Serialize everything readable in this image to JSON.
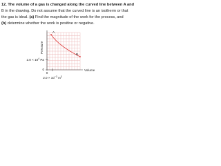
{
  "problem": {
    "lines": [
      [
        "12. The volume of a gas is changed along the curved line between A and"
      ],
      [
        "B in the drawing. Do not assume that the curved line is an isotherm or that"
      ],
      [
        "the gas is ideal. ",
        "(a)",
        " Find the magnitude of the work for the process, and"
      ],
      [
        "(b)",
        " determine whether the work is positive or negative."
      ]
    ]
  },
  "graph": {
    "y_axis_label": "Pressure",
    "x_axis_label": "Volume",
    "point_a": "A",
    "point_b": "B",
    "y_tick": {
      "base": "2.0 × 10",
      "exp": "4",
      "unit": " Pa"
    },
    "y_origin": "0",
    "x_origin": "0",
    "x_tick": {
      "base": "2.0 × 10",
      "exp": "−3",
      "unit": " m",
      "unit_exp": "3"
    }
  }
}
